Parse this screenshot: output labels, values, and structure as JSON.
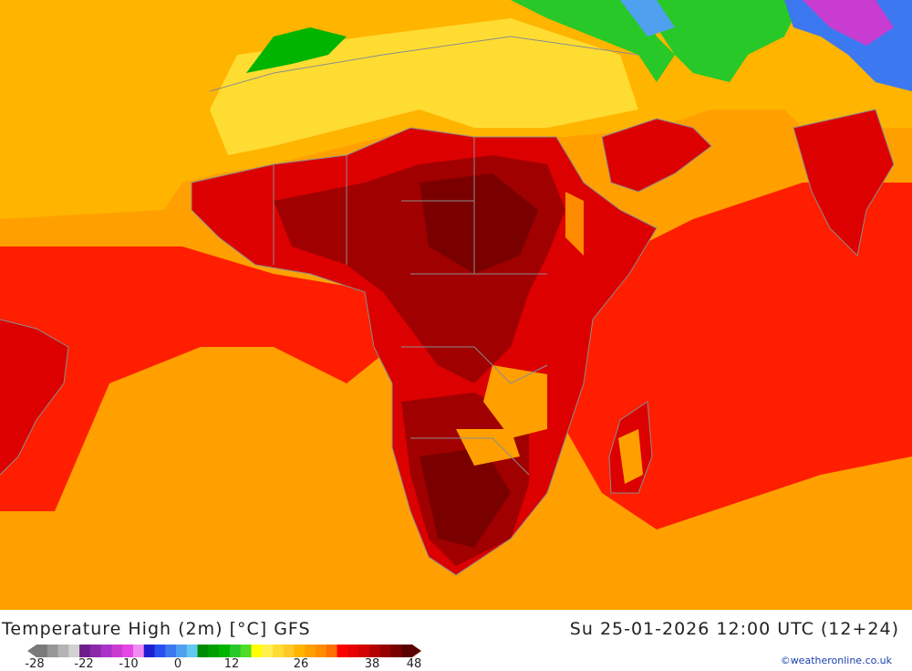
{
  "title": "Temperature High (2m) [°C] GFS",
  "datetime": "Su 25-01-2026 12:00 UTC (12+24)",
  "credit": "©weatheronline.co.uk",
  "legend": {
    "ticks": [
      "-28",
      "-22",
      "-10",
      "0",
      "12",
      "26",
      "38",
      "48"
    ],
    "colors": [
      "#7a7a7a",
      "#969696",
      "#b4b4b4",
      "#d2d2d2",
      "#6e1e8c",
      "#8c28aa",
      "#aa32c8",
      "#c83cd2",
      "#e646e6",
      "#f08cf0",
      "#1e1ed2",
      "#2850f0",
      "#3c78f0",
      "#50a0f0",
      "#64c8f0",
      "#008c00",
      "#00a000",
      "#00b400",
      "#28c828",
      "#50dc28",
      "#ffff00",
      "#fff050",
      "#ffdc32",
      "#ffc828",
      "#ffb400",
      "#ffa000",
      "#ff8c00",
      "#ff6e00",
      "#ff0000",
      "#e60000",
      "#d20000",
      "#b40000",
      "#960000",
      "#780000",
      "#5a0000"
    ]
  },
  "map": {
    "colors": {
      "ocean_warm": "#ffa000",
      "ocean_hot": "#ff1e00",
      "land_mild": "#ffc828",
      "land_yellow": "#ffdc32",
      "land_hot": "#dc0000",
      "land_very_hot": "#a00000",
      "land_extreme": "#7a0000",
      "green": "#00b400",
      "blue": "#3c78f0",
      "purple": "#c83cd2",
      "border": "#8c8c8c"
    }
  }
}
